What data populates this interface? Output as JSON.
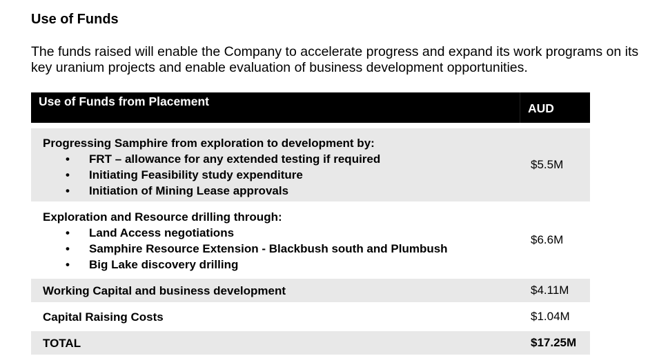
{
  "heading": "Use of Funds",
  "intro": "The funds raised will enable the Company to accelerate progress and expand its work programs on its key uranium projects and enable evaluation of business development opportunities.",
  "table": {
    "header": {
      "description": "Use of Funds from Placement",
      "amount": "AUD"
    },
    "rows": [
      {
        "title": "Progressing Samphire from exploration to development by:",
        "bullets": [
          "FRT – allowance for any extended testing if required",
          "Initiating Feasibility study expenditure",
          "Initiation of Mining Lease approvals"
        ],
        "amount": "$5.5M"
      },
      {
        "title": "Exploration and Resource drilling through:",
        "bullets": [
          "Land Access negotiations",
          "Samphire Resource Extension - Blackbush south and Plumbush",
          "Big Lake discovery drilling"
        ],
        "amount": "$6.6M"
      },
      {
        "title": "Working Capital and business development",
        "amount": "$4.11M"
      },
      {
        "title": "Capital Raising Costs",
        "amount": "$1.04M"
      },
      {
        "title": "TOTAL",
        "amount": "$17.25M"
      }
    ]
  },
  "bullet_glyph": "•",
  "colors": {
    "header_bg": "#000000",
    "header_text": "#ffffff",
    "shaded_row": "#e8e8e8",
    "plain_row": "#ffffff"
  }
}
